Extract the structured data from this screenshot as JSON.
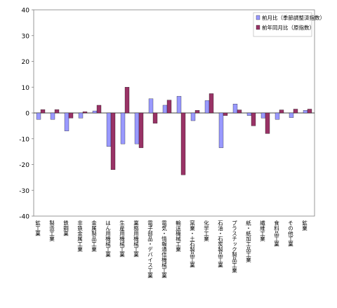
{
  "chart_data": {
    "type": "bar",
    "categories": [
      "鉱工業",
      "製造工業",
      "鉄鋼業",
      "非鉄金属工業",
      "金属製品工業",
      "はん用機械工業",
      "生産用機械工業",
      "業務用機械工業",
      "電子部品・デバイス工業",
      "電気・情報通信機械工業",
      "輸送機械工業",
      "窯業・土石製品工業",
      "化学工業",
      "石油・石炭製品工業",
      "プラスチック製品工業",
      "紙・紙加工品工業",
      "繊維工業",
      "食料品工業",
      "その他工業",
      "鉱業"
    ],
    "series": [
      {
        "name": "前月比（季節調整済指数）",
        "color": "#9999ff",
        "values": [
          -2.5,
          -2.5,
          -7.0,
          -2.0,
          0.8,
          -13.0,
          -12.0,
          -12.0,
          5.5,
          3.0,
          6.5,
          -3.0,
          4.8,
          -13.5,
          3.5,
          -1.0,
          -2.0,
          -2.5,
          -1.8,
          1.0
        ]
      },
      {
        "name": "前年同月比（原指数）",
        "color": "#993366",
        "values": [
          1.3,
          1.3,
          -2.0,
          0.5,
          3.0,
          -22.0,
          10.0,
          -13.5,
          -4.0,
          5.0,
          -24.0,
          1.0,
          7.5,
          -1.0,
          1.2,
          -5.0,
          -8.0,
          1.2,
          1.5,
          1.5
        ]
      }
    ],
    "ylim": [
      -40,
      40
    ],
    "yticks": [
      -40,
      -30,
      -20,
      -10,
      0,
      10,
      20,
      30,
      40
    ],
    "legend_position": "top-right",
    "grid": false
  }
}
